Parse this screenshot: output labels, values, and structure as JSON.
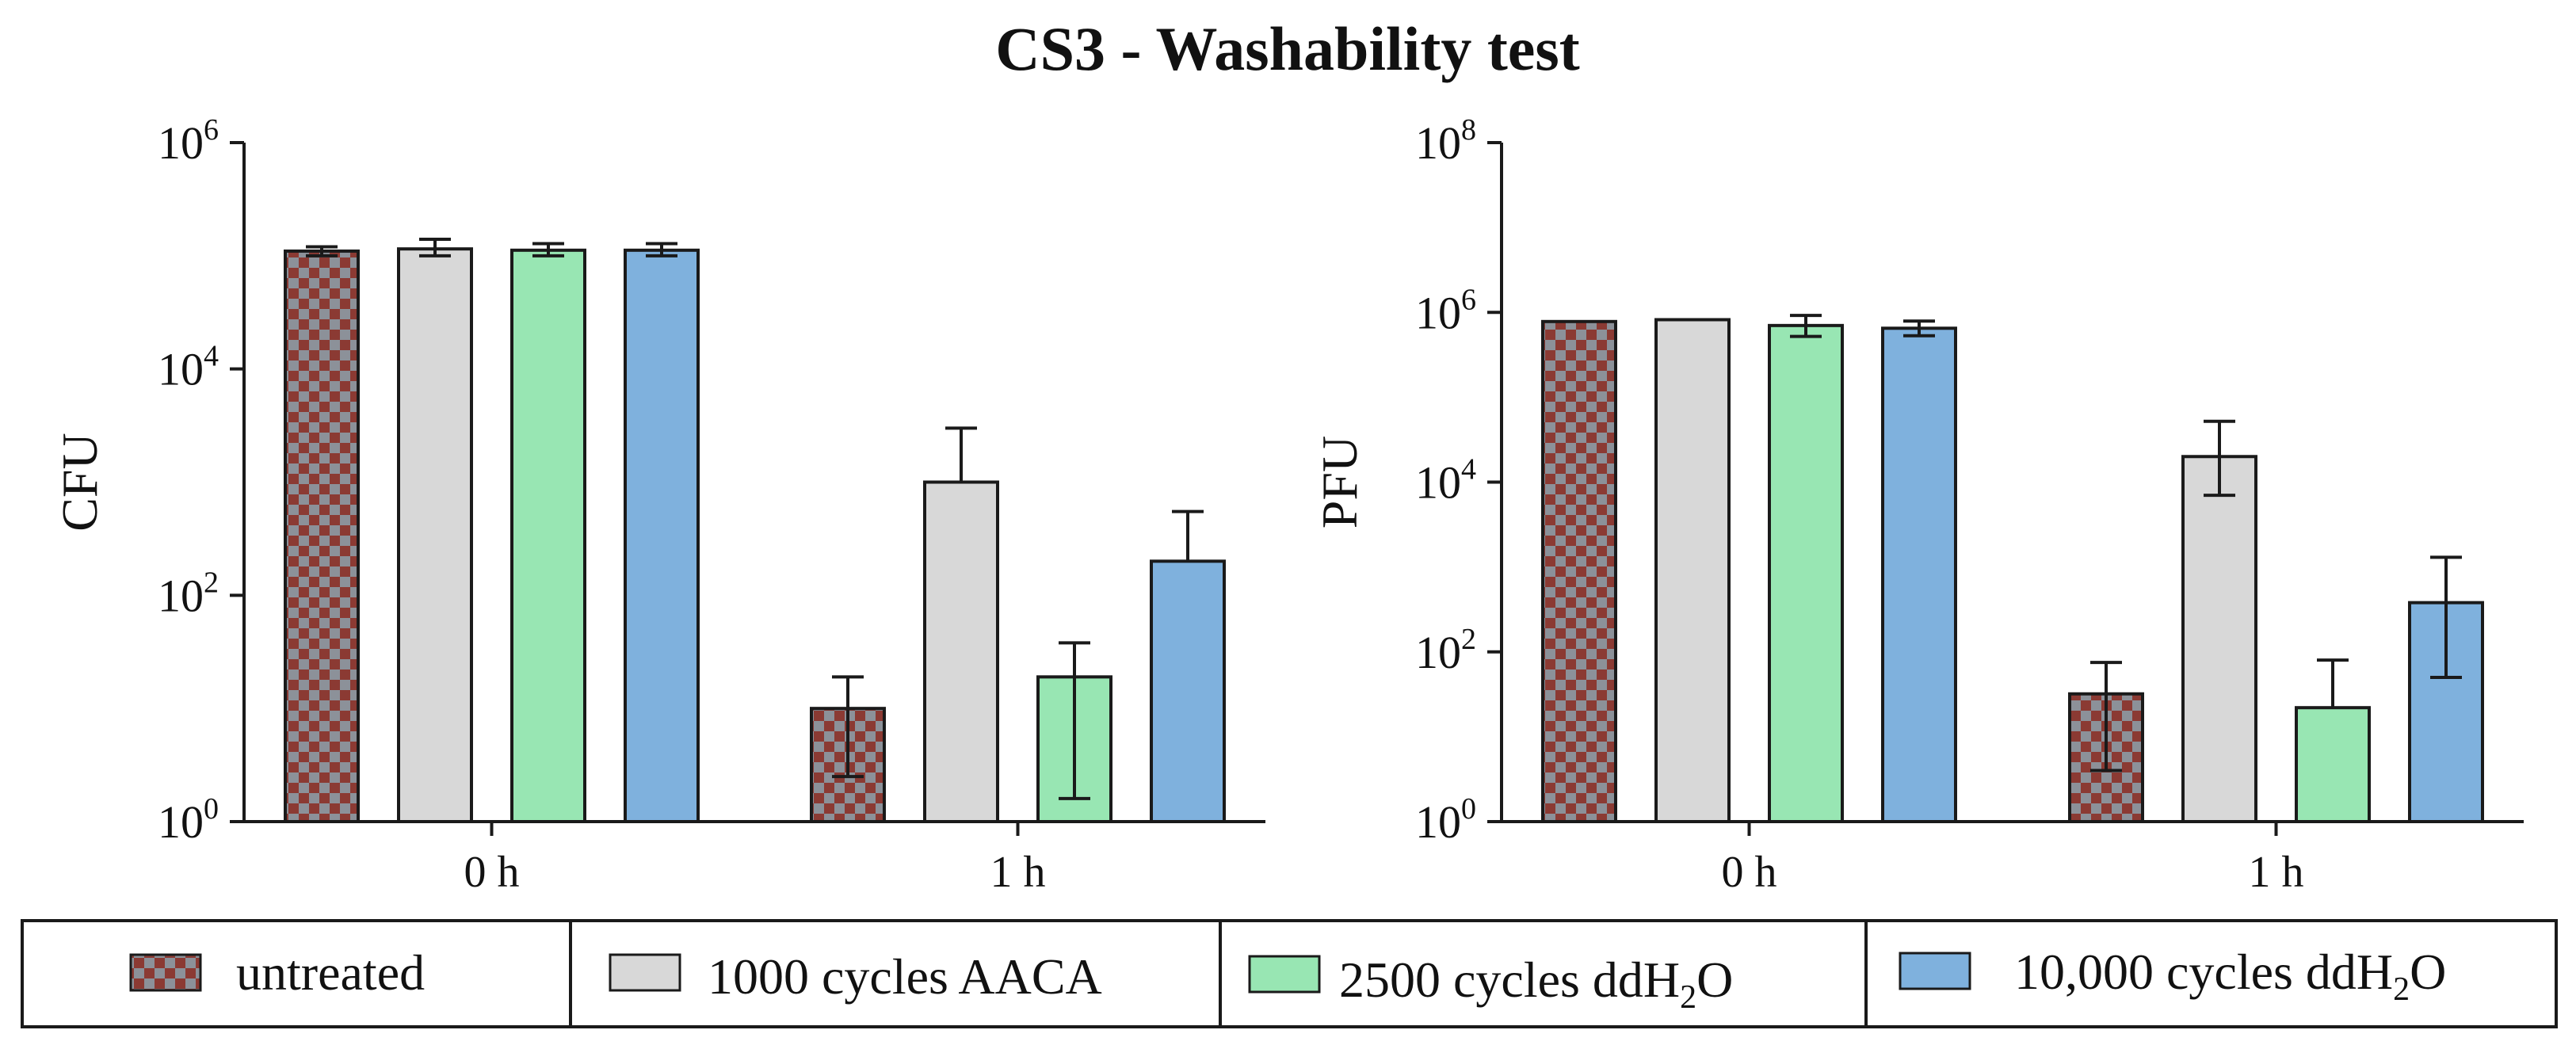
{
  "title": "CS3 - Washability test",
  "legend": {
    "items": [
      {
        "key": "untreated",
        "parts": [
          {
            "t": "untreated",
            "s": ""
          }
        ]
      },
      {
        "key": "aaca",
        "parts": [
          {
            "t": "1000 cycles AACA",
            "s": ""
          }
        ]
      },
      {
        "key": "dd2500",
        "parts": [
          {
            "t": "2500 cycles ddH",
            "s": ""
          },
          {
            "t": "2",
            "s": "sub"
          },
          {
            "t": "O",
            "s": ""
          }
        ]
      },
      {
        "key": "dd10000",
        "parts": [
          {
            "t": "10,000 cycles ddH",
            "s": ""
          },
          {
            "t": "2",
            "s": "sub"
          },
          {
            "t": "O",
            "s": ""
          }
        ]
      }
    ]
  },
  "colors": {
    "untreated_a": "#8b3a33",
    "untreated_b": "#8c9199",
    "aaca": "#d8d8d8",
    "dd2500": "#98e6b3",
    "dd10000": "#7fb1dd",
    "stroke": "#1a1a1a"
  },
  "chart_data": [
    {
      "type": "bar",
      "title": "",
      "xlabel": "",
      "ylabel": "CFU",
      "yscale": "log",
      "ylim": [
        1,
        1000000
      ],
      "y_tick_exponents": [
        0,
        2,
        4,
        6
      ],
      "categories": [
        "0 h",
        "1 h"
      ],
      "series": [
        {
          "name": "untreated",
          "key": "untreated",
          "values": [
            110000,
            10
          ],
          "err_low": [
            100000,
            2.5
          ],
          "err_high": [
            120000,
            19
          ]
        },
        {
          "name": "1000 cycles AACA",
          "key": "aaca",
          "values": [
            115000,
            1000
          ],
          "err_low": [
            100000,
            1000
          ],
          "err_high": [
            140000,
            3000
          ]
        },
        {
          "name": "2500 cycles ddH2O",
          "key": "dd2500",
          "values": [
            112000,
            19
          ],
          "err_low": [
            100000,
            1.6
          ],
          "err_high": [
            128000,
            38
          ]
        },
        {
          "name": "10,000 cycles ddH2O",
          "key": "dd10000",
          "values": [
            112000,
            200
          ],
          "err_low": [
            100000,
            200
          ],
          "err_high": [
            128000,
            550
          ]
        }
      ]
    },
    {
      "type": "bar",
      "title": "",
      "xlabel": "",
      "ylabel": "PFU",
      "yscale": "log",
      "ylim": [
        1,
        100000000
      ],
      "y_tick_exponents": [
        0,
        2,
        4,
        6,
        8
      ],
      "categories": [
        "0 h",
        "1 h"
      ],
      "series": [
        {
          "name": "untreated",
          "key": "untreated",
          "values": [
            780000,
            32
          ],
          "err_low": [
            780000,
            4
          ],
          "err_high": [
            780000,
            75
          ]
        },
        {
          "name": "1000 cycles AACA",
          "key": "aaca",
          "values": [
            820000,
            20000
          ],
          "err_low": [
            820000,
            7000
          ],
          "err_high": [
            820000,
            52000
          ]
        },
        {
          "name": "2500 cycles ddH2O",
          "key": "dd2500",
          "values": [
            700000,
            22
          ],
          "err_low": [
            520000,
            22
          ],
          "err_high": [
            920000,
            80
          ]
        },
        {
          "name": "10,000 cycles ddH2O",
          "key": "dd10000",
          "values": [
            650000,
            380
          ],
          "err_low": [
            530000,
            50
          ],
          "err_high": [
            790000,
            1300
          ]
        }
      ]
    }
  ]
}
